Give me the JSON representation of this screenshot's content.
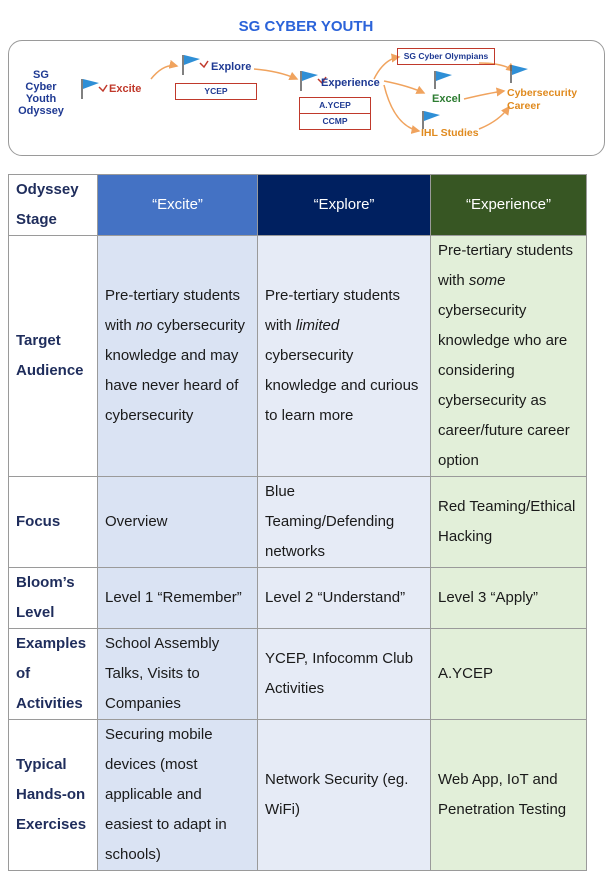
{
  "title": "SG CYBER YOUTH",
  "diagram": {
    "left_label": "SG\nCyber\nYouth\nOdyssey",
    "excite": "Excite",
    "explore": "Explore",
    "experience": "Experience",
    "excel": "Excel",
    "ycep": "YCEP",
    "aycep": "A.YCEP",
    "ccmp": "CCMP",
    "olympians": "SG Cyber Olympians",
    "career": "Cybersecurity\nCareer",
    "ihl": "IHL Studies",
    "colors": {
      "excite": "#c0392b",
      "explore": "#1f3a93",
      "experience": "#1f3a93",
      "excel": "#2e7d32",
      "career": "#e08a1e",
      "ihl": "#e08a1e",
      "arrow": "#f0a35e"
    }
  },
  "table": {
    "header_label": "Odyssey Stage",
    "stages": [
      "“Excite”",
      "“Explore”",
      "“Experience”"
    ],
    "rows": [
      {
        "label": "Target Audience",
        "cells": [
          [
            "Pre-tertiary students with ",
            "no",
            " cybersecurity knowledge and may have never heard of cybersecurity"
          ],
          [
            "Pre-tertiary students with ",
            "limited",
            " cybersecurity knowledge and curious to learn more"
          ],
          [
            "Pre-tertiary students with ",
            "some",
            " cybersecurity knowledge who are considering cybersecurity as career/future career option"
          ]
        ]
      },
      {
        "label": "Focus",
        "cells": [
          "Overview",
          "Blue Teaming/Defending networks",
          "Red Teaming/Ethical Hacking"
        ]
      },
      {
        "label": "Bloom’s Level",
        "cells": [
          "Level 1 “Remember”",
          "Level 2 “Understand”",
          "Level 3 “Apply”"
        ]
      },
      {
        "label": "Examples of Activities",
        "cells": [
          "School Assembly Talks, Visits to Companies",
          "YCEP, Infocomm Club Activities",
          "A.YCEP"
        ]
      },
      {
        "label": "Typical Hands-on Exercises",
        "cells": [
          "Securing mobile devices (most applicable and easiest to adapt in schools)",
          "Network Security (eg. WiFi)",
          "Web App, IoT and Penetration Testing"
        ]
      }
    ]
  }
}
